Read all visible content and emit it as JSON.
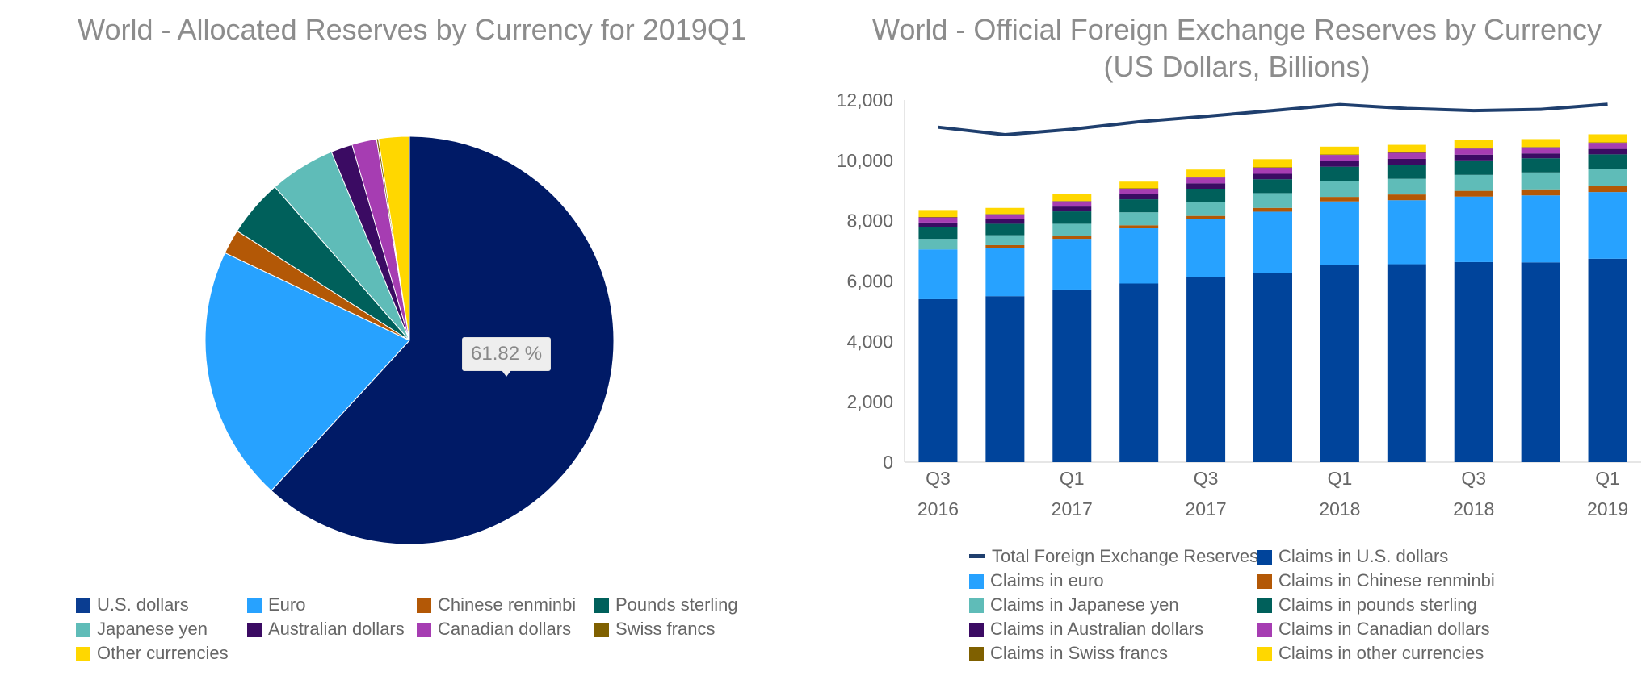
{
  "pie": {
    "title": "World - Allocated Reserves by Currency for 2019Q1",
    "tooltip": "61.82 %",
    "legend": [
      {
        "label": "U.S. dollars",
        "color": "#0a3d91"
      },
      {
        "label": "Euro",
        "color": "#27a2ff"
      },
      {
        "label": "Chinese renminbi",
        "color": "#b35806"
      },
      {
        "label": "Pounds sterling",
        "color": "#00605b"
      },
      {
        "label": "Japanese yen",
        "color": "#5fbcb8"
      },
      {
        "label": "Australian dollars",
        "color": "#3b0b63"
      },
      {
        "label": "Canadian dollars",
        "color": "#a63db2"
      },
      {
        "label": "Swiss francs",
        "color": "#7f6000"
      },
      {
        "label": "Other currencies",
        "color": "#ffd700"
      }
    ]
  },
  "bar": {
    "title_line1": "World - Official Foreign Exchange Reserves by Currency",
    "title_line2": "(US Dollars, Billions)",
    "legend": [
      {
        "label": "Total Foreign Exchange Reserves",
        "color": "#1f3f6e",
        "kind": "line"
      },
      {
        "label": "Claims in U.S. dollars",
        "color": "#00449b",
        "kind": "box"
      },
      {
        "label": "Claims in euro",
        "color": "#27a2ff",
        "kind": "box"
      },
      {
        "label": "Claims in Chinese renminbi",
        "color": "#b35806",
        "kind": "box"
      },
      {
        "label": "Claims in Japanese yen",
        "color": "#5fbcb8",
        "kind": "box"
      },
      {
        "label": "Claims in pounds sterling",
        "color": "#00605b",
        "kind": "box"
      },
      {
        "label": "Claims in Australian dollars",
        "color": "#3b0b63",
        "kind": "box"
      },
      {
        "label": "Claims in Canadian dollars",
        "color": "#a63db2",
        "kind": "box"
      },
      {
        "label": "Claims in Swiss francs",
        "color": "#7f6000",
        "kind": "box"
      },
      {
        "label": "Claims in other currencies",
        "color": "#ffd700",
        "kind": "box"
      }
    ]
  },
  "chart_data": [
    {
      "type": "pie",
      "title": "World - Allocated Reserves by Currency for 2019Q1",
      "slices": [
        {
          "label": "U.S. dollars",
          "value": 61.82,
          "color": "#001a66"
        },
        {
          "label": "Euro",
          "value": 20.24,
          "color": "#27a2ff"
        },
        {
          "label": "Chinese renminbi",
          "value": 1.95,
          "color": "#b35806"
        },
        {
          "label": "Pounds sterling",
          "value": 4.54,
          "color": "#00605b"
        },
        {
          "label": "Japanese yen",
          "value": 5.21,
          "color": "#5fbcb8"
        },
        {
          "label": "Australian dollars",
          "value": 1.7,
          "color": "#3b0b63"
        },
        {
          "label": "Canadian dollars",
          "value": 1.96,
          "color": "#a63db2"
        },
        {
          "label": "Swiss francs",
          "value": 0.15,
          "color": "#7f6000"
        },
        {
          "label": "Other currencies",
          "value": 2.43,
          "color": "#ffd700"
        }
      ],
      "legend_position": "bottom"
    },
    {
      "type": "bar",
      "stacked": true,
      "title": "World - Official Foreign Exchange Reserves by Currency",
      "subtitle": "(US Dollars, Billions)",
      "categories": [
        "2016Q3",
        "2016Q4",
        "2017Q1",
        "2017Q2",
        "2017Q3",
        "2017Q4",
        "2018Q1",
        "2018Q2",
        "2018Q3",
        "2018Q4",
        "2019Q1"
      ],
      "x_tick_labels": [
        {
          "index": 0,
          "line1": "Q3",
          "line2": "2016"
        },
        {
          "index": 2,
          "line1": "Q1",
          "line2": "2017"
        },
        {
          "index": 4,
          "line1": "Q3",
          "line2": "2017"
        },
        {
          "index": 6,
          "line1": "Q1",
          "line2": "2018"
        },
        {
          "index": 8,
          "line1": "Q3",
          "line2": "2018"
        },
        {
          "index": 10,
          "line1": "Q1",
          "line2": "2019"
        }
      ],
      "y_ticks": [
        "0",
        "2,000",
        "4,000",
        "6,000",
        "8,000",
        "10,000",
        "12,000"
      ],
      "ylim": [
        0,
        12000
      ],
      "series": [
        {
          "name": "Claims in U.S. dollars",
          "color": "#00449b",
          "values": [
            5400,
            5500,
            5720,
            5920,
            6130,
            6280,
            6540,
            6560,
            6630,
            6620,
            6740
          ]
        },
        {
          "name": "Claims in euro",
          "color": "#27a2ff",
          "values": [
            1650,
            1600,
            1680,
            1830,
            1920,
            2020,
            2100,
            2120,
            2170,
            2220,
            2210
          ]
        },
        {
          "name": "Claims in Chinese renminbi",
          "color": "#b35806",
          "values": [
            0,
            90,
            100,
            100,
            110,
            125,
            150,
            190,
            190,
            200,
            210
          ]
        },
        {
          "name": "Claims in Japanese yen",
          "color": "#5fbcb8",
          "values": [
            350,
            330,
            400,
            430,
            450,
            490,
            520,
            520,
            530,
            560,
            560
          ]
        },
        {
          "name": "Claims in pounds sterling",
          "color": "#00605b",
          "values": [
            380,
            380,
            410,
            430,
            450,
            460,
            480,
            470,
            480,
            470,
            480
          ]
        },
        {
          "name": "Claims in Australian dollars",
          "color": "#3b0b63",
          "values": [
            160,
            150,
            160,
            170,
            180,
            180,
            190,
            190,
            190,
            160,
            180
          ]
        },
        {
          "name": "Claims in Canadian dollars",
          "color": "#a63db2",
          "values": [
            170,
            160,
            170,
            180,
            190,
            200,
            200,
            200,
            200,
            200,
            200
          ]
        },
        {
          "name": "Claims in Swiss francs",
          "color": "#7f6000",
          "values": [
            15,
            15,
            15,
            15,
            15,
            15,
            15,
            15,
            15,
            15,
            15
          ]
        },
        {
          "name": "Claims in other currencies",
          "color": "#ffd700",
          "values": [
            230,
            200,
            220,
            220,
            250,
            270,
            260,
            250,
            270,
            260,
            270
          ]
        }
      ],
      "line_series": {
        "name": "Total Foreign Exchange Reserves",
        "color": "#1f3f6e",
        "values": [
          11100,
          10850,
          11030,
          11280,
          11460,
          11650,
          11850,
          11720,
          11650,
          11690,
          11860
        ]
      },
      "legend_position": "bottom"
    }
  ]
}
